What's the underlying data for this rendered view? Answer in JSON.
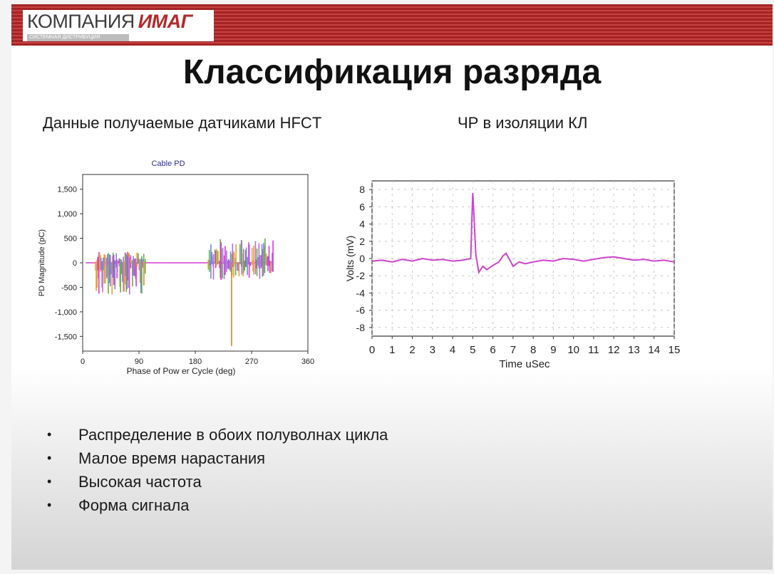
{
  "header": {
    "logo_text_a": "КОМПАНИЯ",
    "logo_text_b": "ИМАГ",
    "logo_subtitle": "СИСТЕМНАЯ ДИСТРИБУЦИЯ",
    "colors": {
      "band": "#b83030",
      "logo_red": "#b42828"
    }
  },
  "slide": {
    "title": "Классификация разряда",
    "subtitle_left": "Данные получаемые датчиками HFCT",
    "subtitle_right": "ЧР в изоляции КЛ",
    "bullets": [
      "Распределение в обоих полуволнах цикла",
      "Малое время нарастания",
      "Высокая частота",
      "Форма сигнала"
    ]
  },
  "chart_data": [
    {
      "type": "bar",
      "title": "Cable PD",
      "xlabel": "Phase of Pow er Cycle (deg)",
      "ylabel": "PD Magnitude (pC)",
      "xlim": [
        0,
        360
      ],
      "ylim": [
        -1800,
        1800
      ],
      "xticks": [
        "0",
        "90",
        "180",
        "270",
        "360"
      ],
      "yticks": [
        "1,500",
        "1,000",
        "500",
        "0",
        "-500",
        "-1,000",
        "-1,500"
      ],
      "grid": false,
      "colors": [
        "#d63ad6",
        "#b26fe0",
        "#e8a23a",
        "#66aa55",
        "#6a8fd4"
      ],
      "clusters": [
        {
          "x_range": [
            20,
            100
          ],
          "y_min": -650,
          "y_max": 230
        },
        {
          "x_range": [
            200,
            305
          ],
          "y_min": -350,
          "y_max": 500
        }
      ],
      "annotations": [
        {
          "x": 238,
          "y": -1700,
          "note": "single deep negative pulse"
        }
      ],
      "reference_line_y": 0
    },
    {
      "type": "line",
      "xlabel": "Time uSec",
      "ylabel": "Volts (mV)",
      "xlim": [
        0,
        15
      ],
      "ylim": [
        -9,
        9
      ],
      "xticks": [
        "0",
        "1",
        "2",
        "3",
        "4",
        "5",
        "6",
        "7",
        "8",
        "9",
        "10",
        "11",
        "12",
        "13",
        "14",
        "15"
      ],
      "yticks": [
        "8",
        "6",
        "4",
        "2",
        "0",
        "-2",
        "-4",
        "-6",
        "-8"
      ],
      "grid": true,
      "line_color": "#cc44cc",
      "series": [
        {
          "x": [
            0,
            0.5,
            1,
            1.5,
            2,
            2.5,
            3,
            3.5,
            4,
            4.5,
            4.9,
            4.95,
            5.0,
            5.05,
            5.15,
            5.3,
            5.5,
            5.7,
            6.0,
            6.3,
            6.5,
            6.65,
            6.8,
            7.0,
            7.3,
            7.6,
            8,
            8.5,
            9,
            9.5,
            10,
            10.5,
            11,
            11.5,
            12,
            12.5,
            13,
            13.5,
            14,
            14.5,
            15
          ],
          "y": [
            -0.3,
            -0.2,
            -0.4,
            -0.1,
            -0.3,
            0.0,
            -0.2,
            -0.1,
            -0.3,
            -0.2,
            0.0,
            4.0,
            7.6,
            5.5,
            0.5,
            -1.6,
            -0.9,
            -1.3,
            -0.8,
            -0.4,
            0.3,
            0.6,
            0.0,
            -0.9,
            -0.4,
            -0.6,
            -0.4,
            -0.2,
            -0.3,
            0.0,
            -0.1,
            -0.3,
            -0.1,
            0.1,
            0.2,
            0.0,
            -0.2,
            -0.1,
            -0.3,
            -0.2,
            -0.4
          ]
        }
      ]
    }
  ]
}
